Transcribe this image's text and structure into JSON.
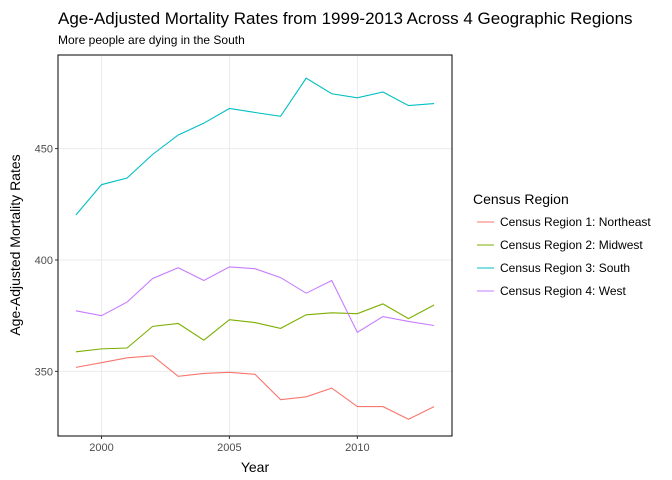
{
  "chart_data": {
    "type": "line",
    "title": "Age-Adjusted Mortality Rates from 1999-2013 Across 4 Geographic Regions",
    "subtitle": "More people are dying in the South",
    "x_label": "Year",
    "y_label": "Age-Adjusted Mortality Rates",
    "legend_title": "Census Region",
    "x": [
      1999,
      2000,
      2001,
      2002,
      2003,
      2004,
      2005,
      2006,
      2007,
      2008,
      2009,
      2010,
      2011,
      2012,
      2013
    ],
    "series": [
      {
        "name": "Census Region 1: Northeast",
        "color": "#F8766D",
        "values": [
          351.8,
          353.9,
          356.1,
          357,
          347.8,
          349.1,
          349.6,
          348.7,
          337.3,
          338.6,
          342.5,
          334.2,
          334.2,
          328.5,
          334.2
        ]
      },
      {
        "name": "Census Region 2: Midwest",
        "color": "#7CAE00",
        "values": [
          358.8,
          360.1,
          360.5,
          370.2,
          371.5,
          364,
          373.2,
          371.9,
          369.3,
          375.4,
          376.3,
          375.9,
          380.3,
          373.7,
          379.8
        ]
      },
      {
        "name": "Census Region 3: South",
        "color": "#00BFC4",
        "values": [
          420.2,
          433.8,
          436.8,
          447.4,
          456.1,
          461.4,
          468,
          466.2,
          464.5,
          481.6,
          474.6,
          472.8,
          475.4,
          469.3,
          470.2
        ]
      },
      {
        "name": "Census Region 4: West",
        "color": "#C77CFF",
        "values": [
          377.2,
          375,
          381.1,
          391.7,
          396.5,
          390.8,
          396.9,
          396.1,
          392.1,
          385.1,
          390.8,
          367.5,
          374.6,
          372.4,
          370.6
        ]
      }
    ],
    "xlim": [
      1998.3,
      2013.7
    ],
    "xticks": [
      2000,
      2005,
      2010
    ],
    "ylim": [
      321,
      492
    ],
    "yticks": [
      350,
      400,
      450
    ],
    "grid": true,
    "legend": "right"
  }
}
